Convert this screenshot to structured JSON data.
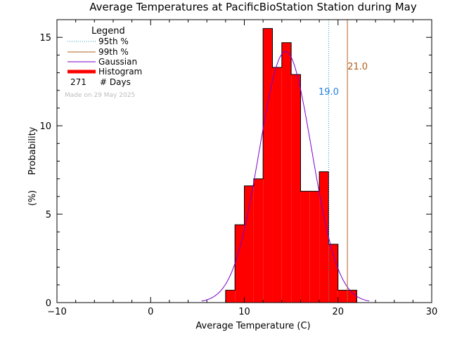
{
  "chart_data": {
    "type": "bar",
    "title": "Average Temperatures at PacificBioStation Station during May",
    "xlabel": "Average Temperature (C)",
    "ylabel_top": "Probability",
    "ylabel_bottom": "(%)",
    "xlim": [
      -10,
      30
    ],
    "ylim": [
      0,
      16
    ],
    "xticks": [
      -10,
      0,
      10,
      20,
      30
    ],
    "yticks": [
      0,
      5,
      10,
      15
    ],
    "grid": false,
    "legend": {
      "title": "Legend",
      "placement": "top-left",
      "entries": [
        {
          "label": "95th %",
          "color": "#20a0c0",
          "style": "dotted"
        },
        {
          "label": "99th %",
          "color": "#b06020",
          "style": "solid"
        },
        {
          "label": "Gaussian",
          "color": "#7a00cc",
          "style": "solid"
        },
        {
          "label": "Histogram",
          "color": "#ff0000",
          "style": "thick"
        }
      ],
      "days_count": "271",
      "days_label": "# Days"
    },
    "made_on": "Made on 29 May 2025",
    "histogram": {
      "color": "#ff0000",
      "bins": [
        {
          "x0": 8,
          "x1": 9,
          "value": 0.7
        },
        {
          "x0": 9,
          "x1": 10,
          "value": 4.4
        },
        {
          "x0": 10,
          "x1": 11,
          "value": 6.6
        },
        {
          "x0": 11,
          "x1": 12,
          "value": 7.0
        },
        {
          "x0": 12,
          "x1": 13,
          "value": 15.5
        },
        {
          "x0": 13,
          "x1": 14,
          "value": 13.3
        },
        {
          "x0": 14,
          "x1": 15,
          "value": 14.7
        },
        {
          "x0": 15,
          "x1": 16,
          "value": 12.9
        },
        {
          "x0": 16,
          "x1": 17,
          "value": 6.3
        },
        {
          "x0": 17,
          "x1": 18,
          "value": 6.3
        },
        {
          "x0": 18,
          "x1": 19,
          "value": 7.4
        },
        {
          "x0": 19,
          "x1": 20,
          "value": 3.3
        },
        {
          "x0": 20,
          "x1": 21,
          "value": 0.7
        },
        {
          "x0": 21,
          "x1": 22,
          "value": 0.7
        }
      ]
    },
    "gaussian": {
      "mean": 14.4,
      "sd": 2.8,
      "peak": 14.2,
      "color": "#7a00cc"
    },
    "percentiles": [
      {
        "name": "95th %",
        "value": 19.0,
        "label": "19.0",
        "color": "#2080e0",
        "line_color": "#20a0c0",
        "style": "dotted"
      },
      {
        "name": "99th %",
        "value": 21.0,
        "label": "21.0",
        "color": "#b06020",
        "line_color": "#b06020",
        "style": "solid"
      }
    ]
  }
}
